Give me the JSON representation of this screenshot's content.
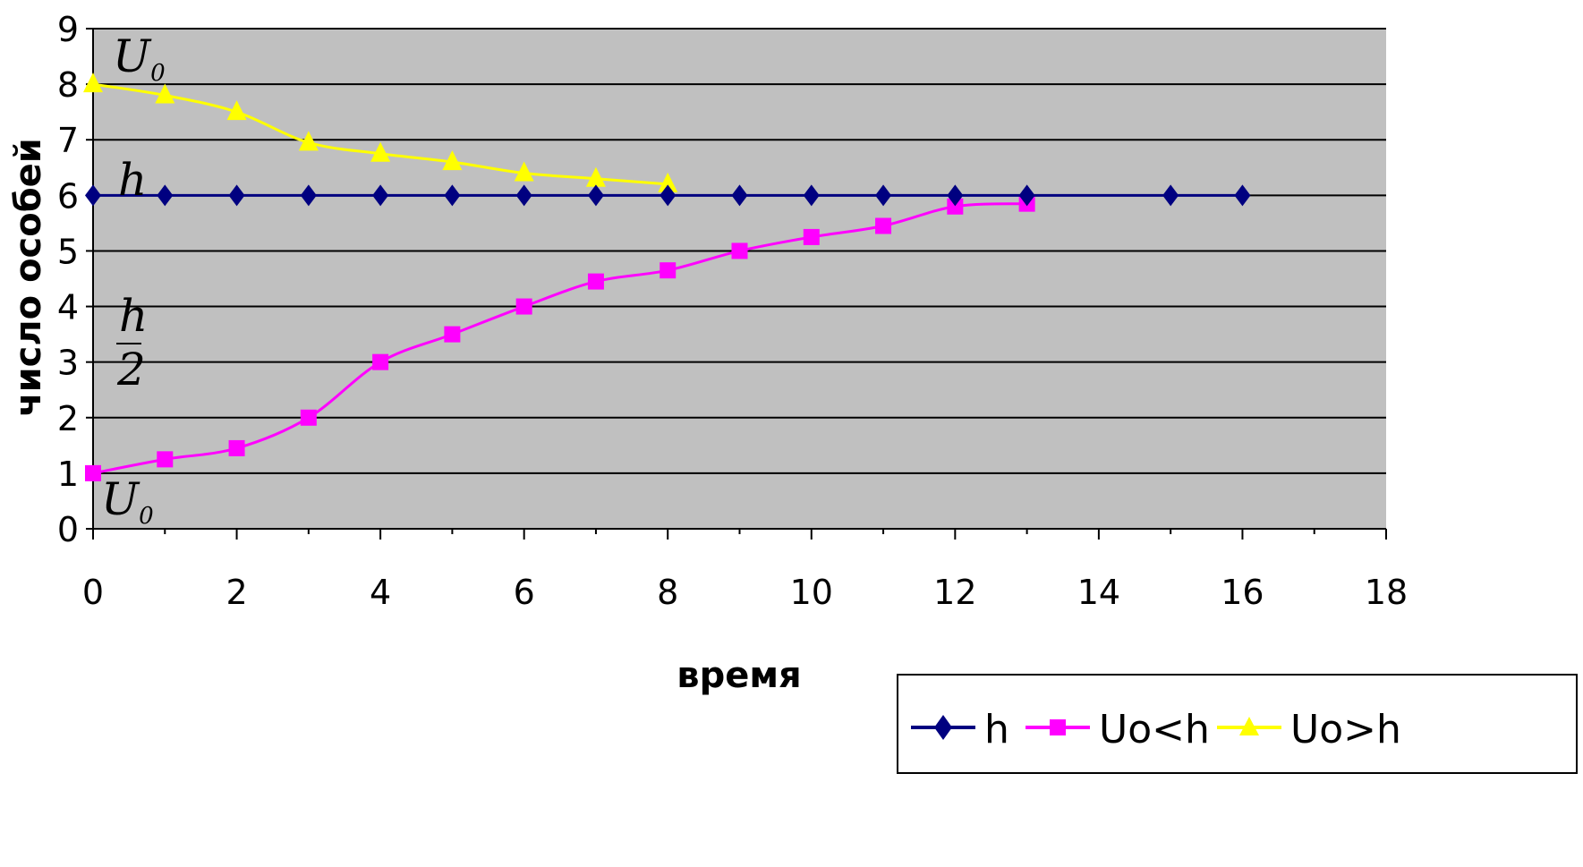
{
  "chart_data": {
    "type": "line",
    "title": "",
    "xlabel": "время",
    "ylabel": "число особей",
    "xlim": [
      0,
      18
    ],
    "ylim": [
      0,
      9
    ],
    "x_ticks": [
      "0",
      "2",
      "4",
      "6",
      "8",
      "10",
      "12",
      "14",
      "16",
      "18"
    ],
    "y_ticks": [
      "0",
      "1",
      "2",
      "3",
      "4",
      "5",
      "6",
      "7",
      "8",
      "9"
    ],
    "grid": "horizontal",
    "legend_position": "bottom-right",
    "series": [
      {
        "name": "h",
        "color": "#000080",
        "marker": "diamond",
        "x": [
          0,
          1,
          2,
          3,
          4,
          5,
          6,
          7,
          8,
          9,
          10,
          11,
          12,
          13,
          15,
          16
        ],
        "y": [
          6,
          6,
          6,
          6,
          6,
          6,
          6,
          6,
          6,
          6,
          6,
          6,
          6,
          6,
          6,
          6
        ]
      },
      {
        "name": "Uo<h",
        "color": "#ff00ff",
        "marker": "square",
        "x": [
          0,
          1,
          2,
          3,
          4,
          5,
          6,
          7,
          8,
          9,
          10,
          11,
          12,
          13
        ],
        "y": [
          1,
          1.25,
          1.45,
          2,
          3,
          3.5,
          4,
          4.45,
          4.65,
          5,
          5.25,
          5.45,
          5.8,
          5.85
        ]
      },
      {
        "name": "Uo>h",
        "color": "#ffff00",
        "marker": "triangle",
        "x": [
          0,
          1,
          2,
          3,
          4,
          5,
          6,
          7,
          8
        ],
        "y": [
          8,
          7.8,
          7.5,
          6.95,
          6.75,
          6.6,
          6.4,
          6.3,
          6.2
        ]
      }
    ],
    "annotations": [
      {
        "id": "u0_top",
        "text": "U",
        "sub": "0"
      },
      {
        "id": "h_label",
        "text": "h"
      },
      {
        "id": "half_num",
        "text": "h"
      },
      {
        "id": "half_den",
        "text": "2"
      },
      {
        "id": "u0_bottom",
        "text": "U",
        "sub": "0"
      }
    ]
  }
}
